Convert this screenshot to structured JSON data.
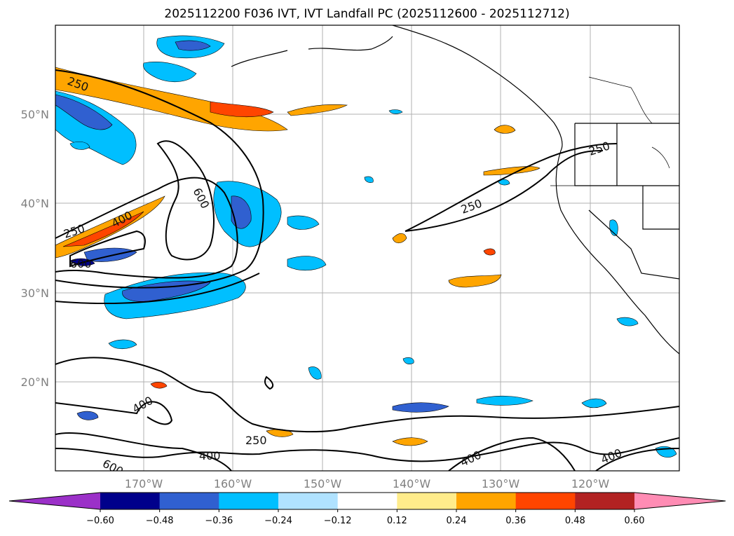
{
  "title": "2025112200 F036 IVT, IVT Landfall PC (2025112600 - 2025112712)",
  "map": {
    "lat_labels": [
      "50°N",
      "40°N",
      "30°N",
      "20°N"
    ],
    "lon_labels": [
      "170°W",
      "160°W",
      "150°W",
      "140°W",
      "130°W",
      "120°W"
    ],
    "contour_labels": [
      "250",
      "250",
      "250",
      "250",
      "400",
      "400",
      "400",
      "400",
      "400",
      "600",
      "600",
      "600"
    ]
  },
  "colorbar": {
    "ticks": [
      "−0.60",
      "−0.48",
      "−0.36",
      "−0.24",
      "−0.12",
      "0.12",
      "0.24",
      "0.36",
      "0.48",
      "0.60"
    ],
    "colors": [
      "#9b30c8",
      "#00008b",
      "#3060d0",
      "#00bfff",
      "#b0e2ff",
      "#ffffff",
      "#ffec8b",
      "#ffa500",
      "#ff4500",
      "#b22222",
      "#ff8cb4"
    ]
  }
}
